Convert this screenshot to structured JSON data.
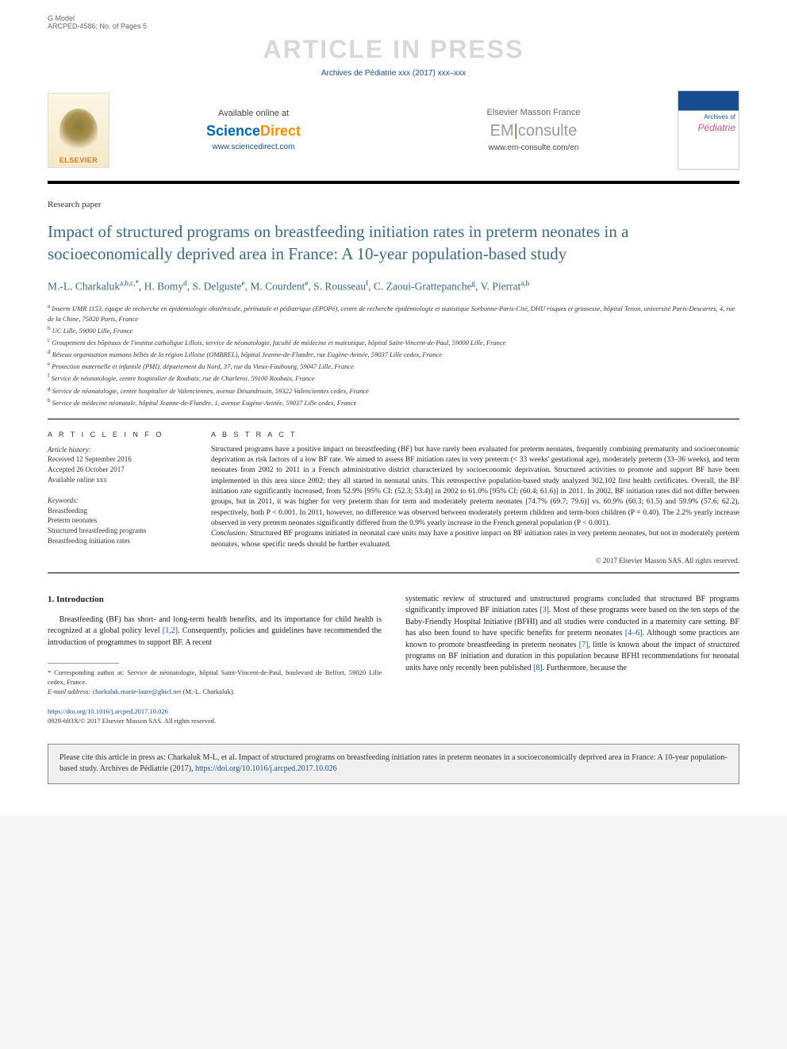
{
  "gmodel": {
    "line1": "G Model",
    "line2": "ARCPED-4586; No. of Pages 5"
  },
  "watermark": "ARTICLE IN PRESS",
  "journal_line": "Archives de Pédiatrie xxx (2017) xxx–xxx",
  "header": {
    "elsevier": "ELSEVIER",
    "available": "Available online at",
    "sd_science": "Science",
    "sd_direct": "Direct",
    "sd_link": "www.sciencedirect.com",
    "em_title": "Elsevier Masson France",
    "em_logo_em": "EM",
    "em_logo_consulte": "consulte",
    "em_link": "www.em-consulte.com/en",
    "jcover_top": "Archives of",
    "jcover_main": "Pédiatrie"
  },
  "article_type": "Research paper",
  "title": "Impact of structured programs on breastfeeding initiation rates in preterm neonates in a socioeconomically deprived area in France: A 10-year population-based study",
  "authors_html": "M.-L. Charkaluk<sup>a,b,c,*</sup>, H. Bomy<sup>d</sup>, S. Delguste<sup>e</sup>, M. Courdent<sup>e</sup>, S. Rousseau<sup>f</sup>, C. Zaoui-Grattepanche<sup>g</sup>, V. Pierrat<sup>a,h</sup>",
  "affiliations": [
    "a Inserm UMR 1153, équipe de recherche en épidémiologie obstétricale, périnatale et pédiatrique (EPOPé), centre de recherche épidémiologie et statistique Sorbonne-Paris-Cité, DHU risques et grossesse, hôpital Tenon, université Paris-Descartes, 4, rue de la Chine, 75020 Paris, France",
    "b UC Lille, 59000 Lille, France",
    "c Groupement des hôpitaux de l'institut catholique Lillois, service de néonatologie, faculté de médecine et maïeutique, hôpital Saint-Vincent-de-Paul, 59000 Lille, France",
    "d Réseau organisation mamans bébés de la région Lilloise (OMBREL), hôpital Jeanne-de-Flandre, rue Eugène-Avinée, 59037 Lille cedex, France",
    "e Protection maternelle et infantile (PMI), département du Nord, 37, rue du Vieux-Faubourg, 59047 Lille, France",
    "f Service de néonatologie, centre hospitalier de Roubaix, rue de Charleroi, 59100 Roubaix, France",
    "g Service de néonatologie, centre hospitalier de Valenciennes, avenue Désandrouin, 59322 Valenciennes cedex, France",
    "h Service de médecine néonatale, hôpital Jeanne-de-Flandre, 1, avenue Eugène-Avinée, 59037 Lille cedex, France"
  ],
  "article_info": {
    "label": "A R T I C L E   I N F O",
    "history_label": "Article history:",
    "received": "Received 12 September 2016",
    "accepted": "Accepted 26 October 2017",
    "online": "Available online xxx",
    "keywords_label": "Keywords:",
    "keywords": [
      "Breastfeeding",
      "Preterm neonates",
      "Structured breastfeeding programs",
      "Breastfeeding initiation rates"
    ]
  },
  "abstract": {
    "label": "A B S T R A C T",
    "body": "Structured programs have a positive impact on breastfeeding (BF) but have rarely been evaluated for preterm neonates, frequently combining prematurity and socioeconomic deprivation as risk factors of a low BF rate. We aimed to assess BF initiation rates in very preterm (< 33 weeks' gestational age), moderately preterm (33–36 weeks), and term neonates from 2002 to 2011 in a French administrative district characterized by socioeconomic deprivation. Structured activities to promote and support BF have been implemented in this area since 2002; they all started in neonatal units. This retrospective population-based study analyzed 302,102 first health certificates. Overall, the BF initiation rate significantly increased, from 52.9% [95% CI: (52.3; 53.4)] in 2002 to 61.0% [95% CI: (60.4; 61.6)] in 2011. In 2002, BF initiation rates did not differ between groups, but in 2011, it was higher for very preterm than for term and moderately preterm neonates [74.7% (69.7; 79.6)] vs. 60.9% (60.3; 61.5) and 59.9% (57.6; 62.2), respectively, both P < 0.001. In 2011, however, no difference was observed between moderately preterm children and term-born children (P = 0.40). The 2.2% yearly increase observed in very preterm neonates significantly differed from the 0.9% yearly increase in the French general population (P < 0.001).",
    "conclusion_label": "Conclusion:",
    "conclusion": " Structured BF programs initiated in neonatal care units may have a positive impact on BF initiation rates in very preterm neonates, but not in moderately preterm neonates, whose specific needs should be further evaluated.",
    "copyright": "© 2017 Elsevier Masson SAS. All rights reserved."
  },
  "intro": {
    "heading": "1. Introduction",
    "col1": "Breastfeeding (BF) has short- and long-term health benefits, and its importance for child health is recognized at a global policy level [1,2]. Consequently, policies and guidelines have recommended the introduction of programmes to support BF. A recent",
    "col2": "systematic review of structured and unstructured programs concluded that structured BF programs significantly improved BF initiation rates [3]. Most of these programs were based on the ten steps of the Baby-Friendly Hospital Initiative (BFHI) and all studies were conducted in a maternity care setting. BF has also been found to have specific benefits for preterm neonates [4–6]. Although some practices are known to promote breastfeeding in preterm neonates [7], little is known about the impact of structured programs on BF initiation and duration in this population because BFHI recommendations for neonatal units have only recently been published [8]. Furthermore, because the"
  },
  "footnote": {
    "corr": "* Corresponding author at: Service de néonatologie, hôpital Saint-Vincent-de-Paul, boulevard de Belfort, 59020 Lille cedex, France.",
    "email_label": "E-mail address:",
    "email": "charkaluk.marie-laure@ghicl.net",
    "email_who": "(M.-L. Charkaluk)."
  },
  "doi": {
    "link": "https://doi.org/10.1016/j.arcped.2017.10.026",
    "line2": "0929-693X/© 2017 Elsevier Masson SAS. All rights reserved."
  },
  "citebox": {
    "text": "Please cite this article in press as: Charkaluk M-L, et al. Impact of structured programs on breastfeeding initiation rates in preterm neonates in a socioeconomically deprived area in France: A 10-year population-based study. Archives de Pédiatrie (2017), ",
    "link": "https://doi.org/10.1016/j.arcped.2017.10.026"
  }
}
